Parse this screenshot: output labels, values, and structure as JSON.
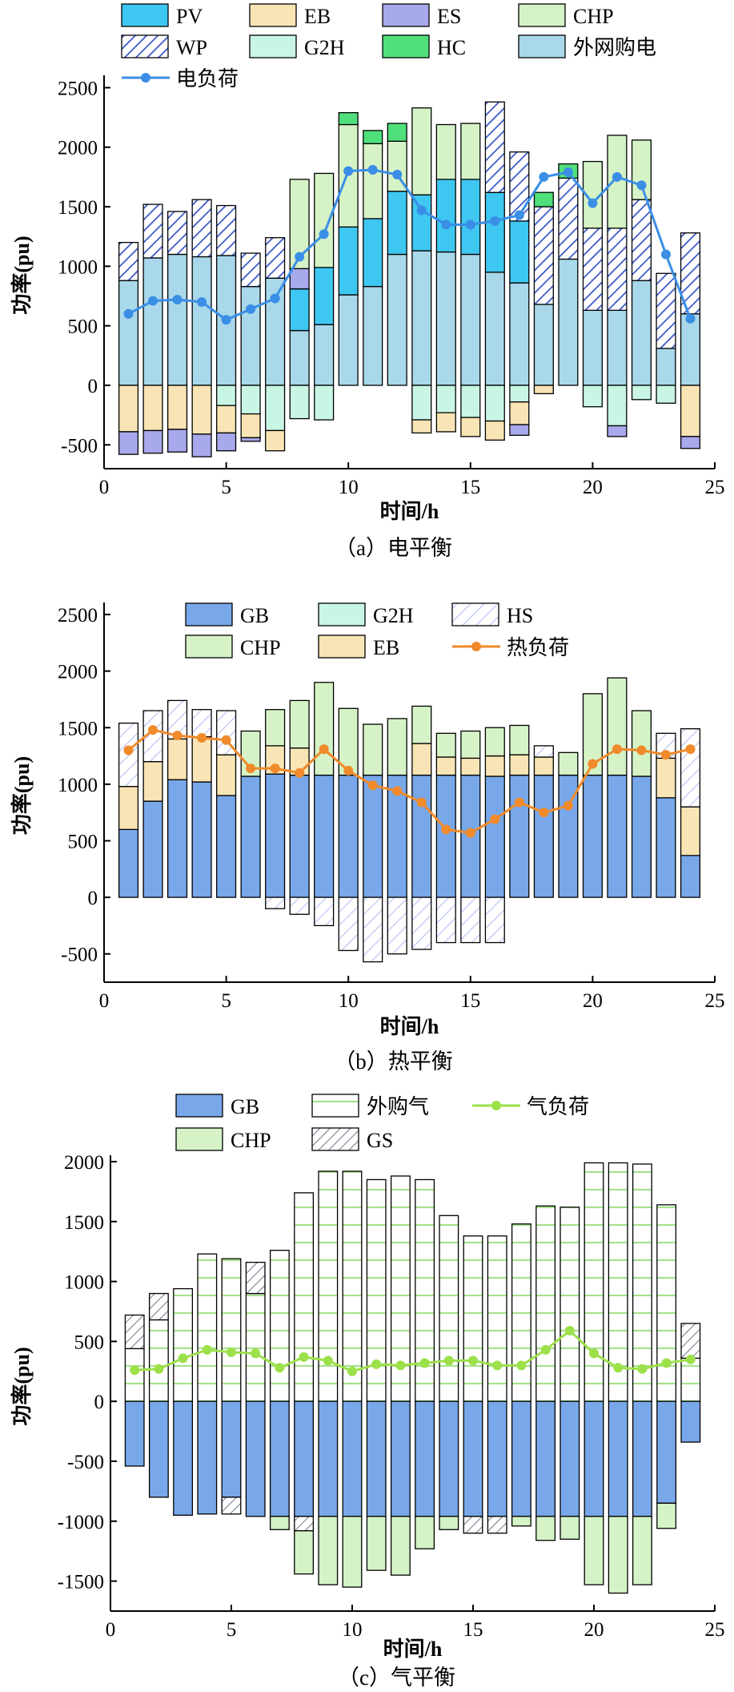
{
  "chart_data": [
    {
      "type": "bar",
      "stacked": true,
      "caption": "（a）电平衡",
      "xlabel": "时间/h",
      "ylabel": "功率(pu)",
      "xlim": [
        0,
        25
      ],
      "xticks": [
        0,
        5,
        10,
        15,
        20,
        25
      ],
      "ylim": [
        -700,
        2550
      ],
      "yticks": [
        -500,
        0,
        500,
        1000,
        1500,
        2000,
        2500
      ],
      "grid": false,
      "legend": "top",
      "x": [
        1,
        2,
        3,
        4,
        5,
        6,
        7,
        8,
        9,
        10,
        11,
        12,
        13,
        14,
        15,
        16,
        17,
        18,
        19,
        20,
        21,
        22,
        23,
        24
      ],
      "series": [
        {
          "name": "外网购电",
          "color": "#a8d8ea",
          "pattern": "solid",
          "values": [
            880,
            1070,
            1100,
            1080,
            1090,
            830,
            900,
            460,
            510,
            760,
            830,
            1100,
            1130,
            1120,
            1100,
            950,
            860,
            680,
            1060,
            630,
            630,
            880,
            310,
            600
          ]
        },
        {
          "name": "PV",
          "color": "#3ec7f0",
          "pattern": "solid",
          "values": [
            0,
            0,
            0,
            0,
            0,
            0,
            0,
            350,
            480,
            570,
            570,
            530,
            470,
            610,
            630,
            670,
            520,
            0,
            0,
            0,
            0,
            0,
            0,
            0
          ]
        },
        {
          "name": "ES",
          "color": "#a8a8ec",
          "pattern": "solid",
          "values": [
            0,
            0,
            0,
            0,
            0,
            0,
            0,
            170,
            0,
            0,
            0,
            0,
            0,
            0,
            0,
            0,
            0,
            0,
            0,
            0,
            0,
            0,
            0,
            0
          ]
        },
        {
          "name": "WP",
          "color": "#ffffff",
          "pattern": "hatch-wp",
          "values": [
            320,
            450,
            360,
            480,
            420,
            280,
            340,
            0,
            0,
            0,
            0,
            0,
            0,
            0,
            0,
            760,
            580,
            820,
            680,
            690,
            690,
            680,
            630,
            680
          ]
        },
        {
          "name": "CHP",
          "color": "#d5f3c6",
          "pattern": "solid",
          "values": [
            0,
            0,
            0,
            0,
            0,
            0,
            0,
            750,
            790,
            860,
            630,
            420,
            730,
            460,
            470,
            0,
            0,
            0,
            0,
            560,
            780,
            500,
            0,
            0
          ]
        },
        {
          "name": "HC",
          "color": "#4fe07c",
          "pattern": "solid",
          "values": [
            0,
            0,
            0,
            0,
            0,
            0,
            0,
            0,
            0,
            100,
            110,
            150,
            0,
            0,
            0,
            0,
            0,
            120,
            120,
            0,
            0,
            0,
            0,
            0
          ]
        },
        {
          "name": "G2H",
          "color": "#c8f5e4",
          "pattern": "solid",
          "values": [
            0,
            0,
            0,
            0,
            -170,
            -240,
            -380,
            -280,
            -290,
            0,
            0,
            0,
            -290,
            -230,
            -270,
            -300,
            -140,
            0,
            0,
            -180,
            -340,
            -120,
            -150,
            0
          ]
        },
        {
          "name": "EB",
          "color": "#f8e4b4",
          "pattern": "solid",
          "values": [
            -390,
            -380,
            -370,
            -410,
            -230,
            -200,
            -170,
            0,
            0,
            0,
            0,
            0,
            -110,
            -160,
            -160,
            -160,
            -190,
            -70,
            0,
            0,
            0,
            0,
            0,
            -430
          ]
        },
        {
          "name": "ES_neg",
          "color": "#a8a8ec",
          "pattern": "solid",
          "values": [
            -190,
            -190,
            -190,
            -190,
            -150,
            -30,
            0,
            0,
            0,
            0,
            0,
            0,
            0,
            0,
            0,
            0,
            -90,
            0,
            0,
            0,
            -90,
            0,
            0,
            -100
          ]
        }
      ],
      "line": {
        "name": "电负荷",
        "color": "#3a8ee6",
        "values": [
          600,
          710,
          720,
          700,
          550,
          640,
          730,
          1080,
          1270,
          1800,
          1810,
          1770,
          1470,
          1350,
          1350,
          1380,
          1430,
          1750,
          1790,
          1530,
          1750,
          1680,
          1100,
          560
        ]
      },
      "legend_items": [
        {
          "label": "PV",
          "kind": "box",
          "color": "#3ec7f0",
          "pattern": "solid"
        },
        {
          "label": "EB",
          "kind": "box",
          "color": "#f8e4b4",
          "pattern": "solid"
        },
        {
          "label": "ES",
          "kind": "box",
          "color": "#a8a8ec",
          "pattern": "solid"
        },
        {
          "label": "CHP",
          "kind": "box",
          "color": "#d5f3c6",
          "pattern": "solid"
        },
        {
          "label": "WP",
          "kind": "box",
          "color": "#ffffff",
          "pattern": "hatch-wp"
        },
        {
          "label": "G2H",
          "kind": "box",
          "color": "#c8f5e4",
          "pattern": "solid"
        },
        {
          "label": "HC",
          "kind": "box",
          "color": "#4fe07c",
          "pattern": "solid"
        },
        {
          "label": "外网购电",
          "kind": "box",
          "color": "#a8d8ea",
          "pattern": "solid"
        },
        {
          "label": "电负荷",
          "kind": "line",
          "color": "#3a8ee6"
        }
      ]
    },
    {
      "type": "bar",
      "stacked": true,
      "caption": "（b）热平衡",
      "xlabel": "时间/h",
      "ylabel": "功率(pu)",
      "xlim": [
        0,
        25
      ],
      "xticks": [
        0,
        5,
        10,
        15,
        20,
        25
      ],
      "ylim": [
        -750,
        2550
      ],
      "yticks": [
        -500,
        0,
        500,
        1000,
        1500,
        2000,
        2500
      ],
      "grid": false,
      "legend": "top",
      "x": [
        1,
        2,
        3,
        4,
        5,
        6,
        7,
        8,
        9,
        10,
        11,
        12,
        13,
        14,
        15,
        16,
        17,
        18,
        19,
        20,
        21,
        22,
        23,
        24
      ],
      "series": [
        {
          "name": "GB",
          "color": "#78a8ea",
          "pattern": "solid",
          "values": [
            600,
            850,
            1040,
            1020,
            900,
            1070,
            1090,
            1080,
            1080,
            1080,
            1080,
            1080,
            1080,
            1080,
            1080,
            1070,
            1080,
            1080,
            1080,
            1080,
            1080,
            1070,
            880,
            370
          ]
        },
        {
          "name": "EB",
          "color": "#f8e4b4",
          "pattern": "solid",
          "values": [
            380,
            350,
            360,
            400,
            360,
            0,
            250,
            240,
            0,
            0,
            0,
            0,
            280,
            160,
            150,
            180,
            180,
            160,
            0,
            0,
            0,
            0,
            350,
            430
          ]
        },
        {
          "name": "CHP",
          "color": "#d5f3c6",
          "pattern": "solid",
          "values": [
            0,
            0,
            0,
            0,
            0,
            400,
            320,
            420,
            820,
            590,
            450,
            500,
            330,
            210,
            240,
            250,
            260,
            0,
            200,
            720,
            860,
            580,
            0,
            0
          ]
        },
        {
          "name": "G2H",
          "color": "#c8f5e4",
          "pattern": "solid",
          "values": [
            0,
            0,
            0,
            0,
            0,
            0,
            0,
            0,
            0,
            0,
            0,
            0,
            0,
            0,
            0,
            0,
            0,
            0,
            0,
            0,
            0,
            0,
            0,
            0
          ]
        },
        {
          "name": "HS",
          "color": "#ffffff",
          "pattern": "hatch-hs",
          "values": [
            560,
            450,
            340,
            240,
            390,
            0,
            0,
            0,
            0,
            0,
            0,
            0,
            0,
            0,
            0,
            0,
            0,
            100,
            0,
            0,
            0,
            0,
            220,
            690
          ]
        },
        {
          "name": "HS_neg",
          "color": "#ffffff",
          "pattern": "hatch-hs",
          "values": [
            0,
            0,
            0,
            0,
            0,
            0,
            -100,
            -150,
            -250,
            -470,
            -570,
            -500,
            -460,
            -400,
            -400,
            -400,
            0,
            0,
            0,
            0,
            0,
            0,
            0,
            0
          ]
        }
      ],
      "line": {
        "name": "热负荷",
        "color": "#f08a2a",
        "values": [
          1300,
          1480,
          1430,
          1410,
          1390,
          1140,
          1140,
          1100,
          1310,
          1120,
          990,
          940,
          840,
          600,
          570,
          690,
          840,
          750,
          810,
          1180,
          1310,
          1300,
          1260,
          1310
        ]
      },
      "legend_items": [
        {
          "label": "GB",
          "kind": "box",
          "color": "#78a8ea",
          "pattern": "solid"
        },
        {
          "label": "G2H",
          "kind": "box",
          "color": "#c8f5e4",
          "pattern": "solid"
        },
        {
          "label": "HS",
          "kind": "box",
          "color": "#ffffff",
          "pattern": "hatch-hs"
        },
        {
          "label": "CHP",
          "kind": "box",
          "color": "#d5f3c6",
          "pattern": "solid"
        },
        {
          "label": "EB",
          "kind": "box",
          "color": "#f8e4b4",
          "pattern": "solid"
        },
        {
          "label": "热负荷",
          "kind": "line",
          "color": "#f08a2a"
        }
      ]
    },
    {
      "type": "bar",
      "stacked": true,
      "caption": "（c）气平衡",
      "xlabel": "时间/h",
      "ylabel": "功率(pu)",
      "xlim": [
        0,
        25
      ],
      "xticks": [
        0,
        5,
        10,
        15,
        20,
        25
      ],
      "ylim": [
        -1750,
        2000
      ],
      "yticks": [
        -1500,
        -1000,
        -500,
        0,
        500,
        1000,
        1500,
        2000
      ],
      "grid": false,
      "legend": "top",
      "x": [
        1,
        2,
        3,
        4,
        5,
        6,
        7,
        8,
        9,
        10,
        11,
        12,
        13,
        14,
        15,
        16,
        17,
        18,
        19,
        20,
        21,
        22,
        23,
        24
      ],
      "series": [
        {
          "name": "外购气",
          "color": "#ffffff",
          "pattern": "stripe-gas",
          "values": [
            440,
            680,
            940,
            1230,
            1190,
            900,
            1260,
            1740,
            1920,
            1920,
            1850,
            1880,
            1850,
            1550,
            1380,
            1380,
            1480,
            1630,
            1620,
            1990,
            1990,
            1980,
            1640,
            360
          ]
        },
        {
          "name": "GS",
          "color": "#ffffff",
          "pattern": "hatch-gs",
          "values": [
            280,
            220,
            0,
            0,
            0,
            260,
            0,
            0,
            0,
            0,
            0,
            0,
            0,
            0,
            0,
            0,
            0,
            0,
            0,
            0,
            0,
            0,
            0,
            290
          ]
        },
        {
          "name": "GB",
          "color": "#78a8ea",
          "pattern": "solid",
          "values": [
            -540,
            -800,
            -950,
            -940,
            -800,
            -960,
            -960,
            -960,
            -960,
            -960,
            -960,
            -960,
            -960,
            -960,
            -960,
            -960,
            -960,
            -960,
            -960,
            -960,
            -960,
            -960,
            -850,
            -340
          ]
        },
        {
          "name": "GS_neg",
          "color": "#ffffff",
          "pattern": "hatch-gs",
          "values": [
            0,
            0,
            0,
            0,
            -140,
            0,
            0,
            -120,
            0,
            0,
            0,
            0,
            0,
            0,
            -140,
            -140,
            0,
            0,
            0,
            0,
            0,
            0,
            0,
            0
          ]
        },
        {
          "name": "CHP",
          "color": "#d5f3c6",
          "pattern": "solid",
          "values": [
            0,
            0,
            0,
            0,
            0,
            0,
            -110,
            -360,
            -570,
            -590,
            -450,
            -490,
            -270,
            -110,
            0,
            0,
            -80,
            -200,
            -190,
            -570,
            -640,
            -570,
            -210,
            0
          ]
        }
      ],
      "line": {
        "name": "气负荷",
        "color": "#9ce04a",
        "values": [
          260,
          270,
          360,
          430,
          410,
          400,
          280,
          370,
          340,
          250,
          310,
          300,
          320,
          340,
          340,
          300,
          300,
          430,
          590,
          400,
          280,
          270,
          320,
          350
        ]
      },
      "legend_items": [
        {
          "label": "GB",
          "kind": "box",
          "color": "#78a8ea",
          "pattern": "solid"
        },
        {
          "label": "外购气",
          "kind": "box",
          "color": "#ffffff",
          "pattern": "stripe-gas"
        },
        {
          "label": "气负荷",
          "kind": "line",
          "color": "#9ce04a"
        },
        {
          "label": "CHP",
          "kind": "box",
          "color": "#d5f3c6",
          "pattern": "solid"
        },
        {
          "label": "GS",
          "kind": "box",
          "color": "#ffffff",
          "pattern": "hatch-gs"
        }
      ]
    }
  ]
}
